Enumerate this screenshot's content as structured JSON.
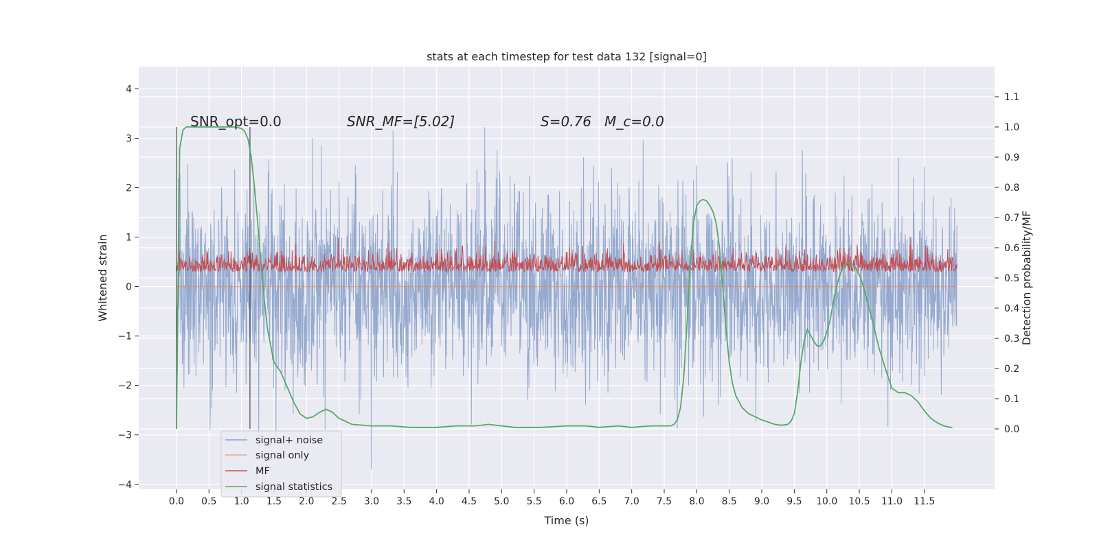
{
  "chart_data": {
    "type": "line",
    "title": "stats at each timestep for test data 132 [signal=0]",
    "xlabel": "Time (s)",
    "ylabel": "Whitened strain",
    "y2label": "Detection probability/MF",
    "xlim": [
      -0.58,
      12.58
    ],
    "ylim": [
      -4.1,
      4.45
    ],
    "y2lim": [
      -0.2,
      1.2
    ],
    "xticks": [
      0.0,
      0.5,
      1.0,
      1.5,
      2.0,
      2.5,
      3.0,
      3.5,
      4.0,
      4.5,
      5.0,
      5.5,
      6.0,
      6.5,
      7.0,
      7.5,
      8.0,
      8.5,
      9.0,
      9.5,
      10.0,
      10.5,
      11.0,
      11.5
    ],
    "xtick_labels": [
      "0.0",
      "0.5",
      "1.0",
      "1.5",
      "2.0",
      "2.5",
      "3.0",
      "3.5",
      "4.0",
      "4.5",
      "5.0",
      "5.5",
      "6.0",
      "6.5",
      "7.0",
      "7.5",
      "8.0",
      "8.5",
      "9.0",
      "9.5",
      "10.0",
      "10.5",
      "11.0",
      "11.5"
    ],
    "yticks": [
      -4,
      -3,
      -2,
      -1,
      0,
      1,
      2,
      3,
      4
    ],
    "ytick_labels": [
      "−4",
      "−3",
      "−2",
      "−1",
      "0",
      "1",
      "2",
      "3",
      "4"
    ],
    "y2ticks": [
      0.0,
      0.1,
      0.2,
      0.3,
      0.4,
      0.5,
      0.6,
      0.7,
      0.8,
      0.9,
      1.0,
      1.1
    ],
    "y2tick_labels": [
      "0.0",
      "0.1",
      "0.2",
      "0.3",
      "0.4",
      "0.5",
      "0.6",
      "0.7",
      "0.8",
      "0.9",
      "1.0",
      "1.1"
    ],
    "grid": true,
    "legend_position": "lower-left",
    "annotations": [
      "SNR_opt=0.0",
      "SNR_MF=[5.02]",
      "S=0.76   M_c=0.0"
    ],
    "series": [
      {
        "name": "signal+ noise",
        "axis": "left",
        "color": "#4c72b0",
        "note": "dense whitened noise around 0, std ~0.95, t from 0 to 12",
        "std": 0.95,
        "x_range": [
          0,
          12
        ]
      },
      {
        "name": "signal only",
        "axis": "left",
        "color": "#dd8452",
        "values_constant": 0.0
      },
      {
        "name": "MF",
        "axis": "right",
        "color": "#c44e52",
        "baseline": 0.52,
        "note": "matched filter output, fluctuating about 0.50-0.58 on right axis"
      },
      {
        "name": "signal statistics",
        "axis": "right",
        "color": "#55a868",
        "x": [
          0.0,
          0.05,
          0.1,
          0.15,
          0.2,
          0.3,
          0.5,
          0.7,
          0.9,
          1.0,
          1.05,
          1.1,
          1.15,
          1.2,
          1.25,
          1.3,
          1.35,
          1.4,
          1.5,
          1.6,
          1.7,
          1.8,
          1.9,
          2.0,
          2.1,
          2.2,
          2.3,
          2.4,
          2.5,
          2.7,
          3.0,
          3.3,
          3.6,
          4.0,
          4.3,
          4.6,
          4.8,
          5.2,
          5.6,
          6.0,
          6.3,
          6.5,
          6.8,
          7.0,
          7.3,
          7.5,
          7.6,
          7.65,
          7.7,
          7.75,
          7.8,
          7.85,
          7.9,
          7.95,
          8.0,
          8.05,
          8.1,
          8.15,
          8.2,
          8.25,
          8.3,
          8.35,
          8.4,
          8.45,
          8.5,
          8.55,
          8.6,
          8.7,
          8.8,
          9.0,
          9.2,
          9.3,
          9.4,
          9.45,
          9.5,
          9.55,
          9.6,
          9.65,
          9.7,
          9.75,
          9.8,
          9.85,
          9.9,
          9.95,
          10.0,
          10.05,
          10.1,
          10.15,
          10.2,
          10.25,
          10.3,
          10.35,
          10.4,
          10.45,
          10.5,
          10.55,
          10.6,
          10.7,
          10.8,
          10.9,
          11.0,
          11.1,
          11.2,
          11.3,
          11.4,
          11.5,
          11.6,
          11.7,
          11.8,
          11.9,
          11.93
        ],
        "values": [
          0.0,
          0.93,
          0.99,
          1.0,
          1.0,
          1.0,
          1.0,
          1.0,
          1.0,
          0.995,
          0.985,
          0.96,
          0.9,
          0.8,
          0.68,
          0.55,
          0.43,
          0.33,
          0.22,
          0.19,
          0.14,
          0.09,
          0.05,
          0.035,
          0.04,
          0.055,
          0.065,
          0.055,
          0.035,
          0.015,
          0.01,
          0.01,
          0.005,
          0.005,
          0.01,
          0.01,
          0.015,
          0.005,
          0.005,
          0.01,
          0.01,
          0.005,
          0.01,
          0.005,
          0.01,
          0.01,
          0.01,
          0.015,
          0.03,
          0.07,
          0.17,
          0.35,
          0.55,
          0.68,
          0.74,
          0.755,
          0.76,
          0.755,
          0.74,
          0.72,
          0.68,
          0.6,
          0.47,
          0.33,
          0.22,
          0.15,
          0.11,
          0.07,
          0.05,
          0.03,
          0.015,
          0.012,
          0.015,
          0.025,
          0.05,
          0.12,
          0.22,
          0.29,
          0.33,
          0.31,
          0.29,
          0.275,
          0.275,
          0.29,
          0.32,
          0.36,
          0.42,
          0.47,
          0.51,
          0.535,
          0.55,
          0.55,
          0.545,
          0.53,
          0.51,
          0.48,
          0.44,
          0.36,
          0.27,
          0.2,
          0.135,
          0.12,
          0.12,
          0.11,
          0.09,
          0.06,
          0.035,
          0.02,
          0.01,
          0.005,
          0.005
        ]
      }
    ],
    "vertical_lines": [
      0.0,
      1.13
    ]
  }
}
